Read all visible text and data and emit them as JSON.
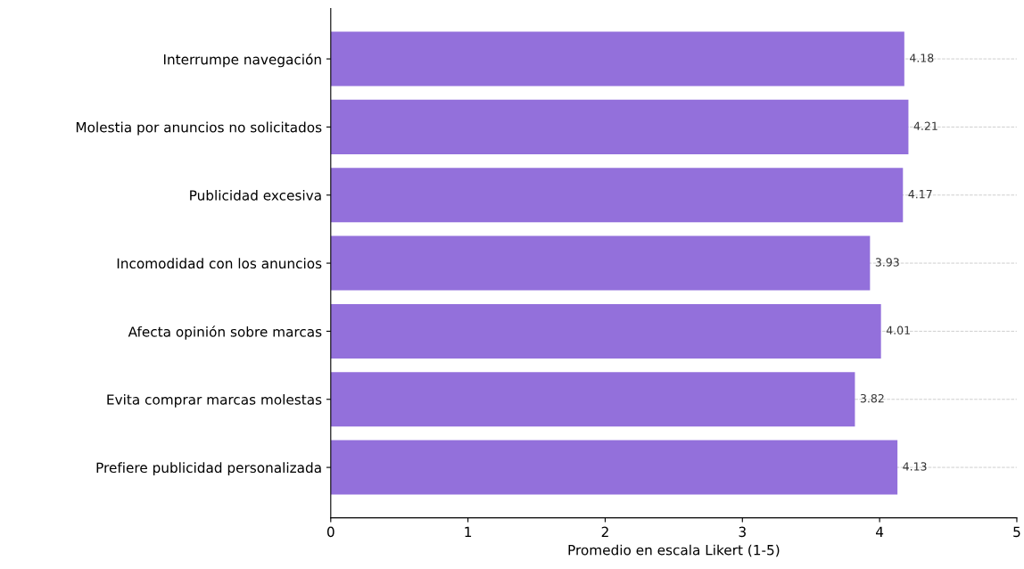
{
  "chart_data": {
    "type": "bar",
    "orientation": "horizontal",
    "xlabel": "Promedio en escala Likert (1-5)",
    "categories": [
      "Interrumpe navegación",
      "Molestia por anuncios no solicitados",
      "Publicidad excesiva",
      "Incomodidad con los anuncios",
      "Afecta opinión sobre marcas",
      "Evita comprar marcas molestas",
      "Prefiere publicidad personalizada"
    ],
    "values": [
      4.18,
      4.21,
      4.17,
      3.93,
      4.01,
      3.82,
      4.13
    ],
    "color": "#9370db",
    "xlim": [
      0,
      5
    ],
    "xticks": [
      0,
      1,
      2,
      3,
      4,
      5
    ],
    "grid": "y",
    "data_labels": true
  }
}
